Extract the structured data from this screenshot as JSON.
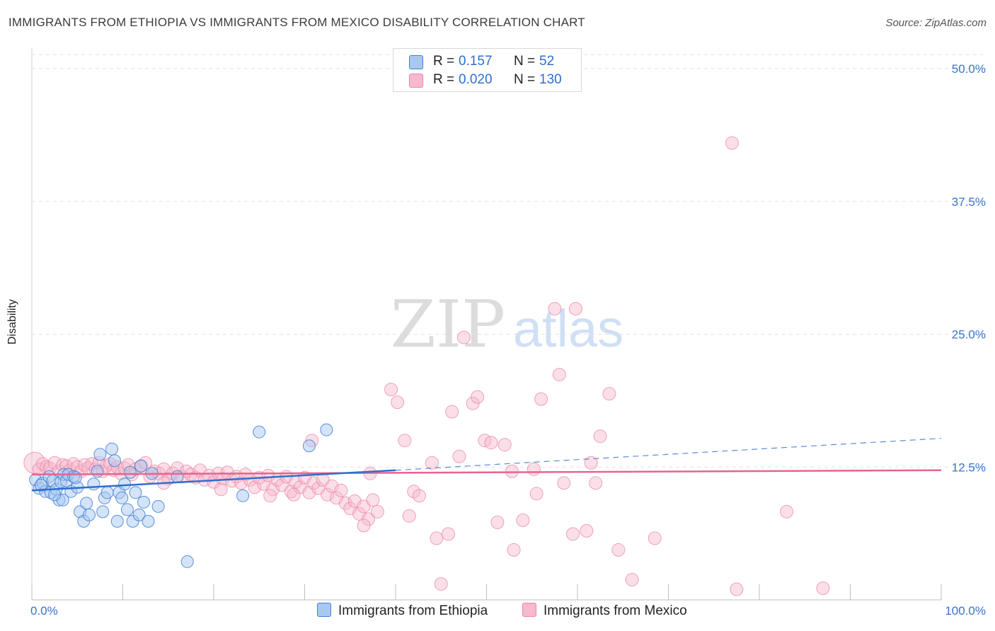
{
  "title": "IMMIGRANTS FROM ETHIOPIA VS IMMIGRANTS FROM MEXICO DISABILITY CORRELATION CHART",
  "source": "Source: ZipAtlas.com",
  "watermark": {
    "zip": "ZIP",
    "atlas": "atlas"
  },
  "colors": {
    "ethiopia_fill": "#a9c8f0",
    "ethiopia_stroke": "#3f7fd6",
    "ethiopia_line": "#2f6fcd",
    "mexico_fill": "#f6b9cd",
    "mexico_stroke": "#e985a6",
    "mexico_line": "#e8648f",
    "axis_text": "#3a72c8",
    "grid": "#e2e2e2"
  },
  "legend": {
    "r_label": "R =",
    "n_label": "N =",
    "ethiopia": {
      "r": "0.157",
      "n": "52"
    },
    "mexico": {
      "r": "0.020",
      "n": "130"
    }
  },
  "bottom_legend": {
    "ethiopia": "Immigrants from Ethiopia",
    "mexico": "Immigrants from Mexico"
  },
  "chart_data": {
    "type": "scatter",
    "title": "IMMIGRANTS FROM ETHIOPIA VS IMMIGRANTS FROM MEXICO DISABILITY CORRELATION CHART",
    "xlabel": "",
    "ylabel": "Disability",
    "xlim": [
      0,
      100
    ],
    "ylim": [
      0,
      50
    ],
    "x_tick_labels": [
      "0.0%",
      "100.0%"
    ],
    "y_ticks": [
      12.5,
      25.0,
      37.5,
      50.0
    ],
    "y_tick_labels": [
      "12.5%",
      "25.0%",
      "37.5%",
      "50.0%"
    ],
    "grid": true,
    "legend_position": "top-center",
    "series": [
      {
        "name": "Immigrants from Ethiopia",
        "r": 0.157,
        "n": 52,
        "trend": {
          "x0": 0,
          "y0": 10.3,
          "x1": 40,
          "y1": 12.2,
          "dashed_to_x": 100,
          "dashed_to_y": 15.2
        },
        "points": [
          [
            0.4,
            11.3
          ],
          [
            0.8,
            10.5
          ],
          [
            1.2,
            11.0
          ],
          [
            1.5,
            10.2
          ],
          [
            1.9,
            11.6
          ],
          [
            2.1,
            10.1
          ],
          [
            2.3,
            11.2
          ],
          [
            2.7,
            10.4
          ],
          [
            3.0,
            9.4
          ],
          [
            3.2,
            11.1
          ],
          [
            3.5,
            11.8
          ],
          [
            3.8,
            11.2
          ],
          [
            4.0,
            11.8
          ],
          [
            4.3,
            10.2
          ],
          [
            4.6,
            11.6
          ],
          [
            5.0,
            10.6
          ],
          [
            3.4,
            9.4
          ],
          [
            1.0,
            10.8
          ],
          [
            2.5,
            9.9
          ],
          [
            5.3,
            8.3
          ],
          [
            5.7,
            7.4
          ],
          [
            6.0,
            9.1
          ],
          [
            6.3,
            8.0
          ],
          [
            6.8,
            10.9
          ],
          [
            7.2,
            12.1
          ],
          [
            7.5,
            13.7
          ],
          [
            7.8,
            8.3
          ],
          [
            8.0,
            9.6
          ],
          [
            8.3,
            10.1
          ],
          [
            8.8,
            14.2
          ],
          [
            9.1,
            13.1
          ],
          [
            9.4,
            7.4
          ],
          [
            9.6,
            10.1
          ],
          [
            9.9,
            9.6
          ],
          [
            10.2,
            10.9
          ],
          [
            10.5,
            8.5
          ],
          [
            10.8,
            12.0
          ],
          [
            11.1,
            7.4
          ],
          [
            11.4,
            10.1
          ],
          [
            11.8,
            8.0
          ],
          [
            12.0,
            12.6
          ],
          [
            12.3,
            9.2
          ],
          [
            12.8,
            7.4
          ],
          [
            13.2,
            11.9
          ],
          [
            13.9,
            8.8
          ],
          [
            16.0,
            11.6
          ],
          [
            17.1,
            3.6
          ],
          [
            23.2,
            9.8
          ],
          [
            25.0,
            15.8
          ],
          [
            30.5,
            14.5
          ],
          [
            32.4,
            16.0
          ],
          [
            4.8,
            11.5
          ]
        ]
      },
      {
        "name": "Immigrants from Mexico",
        "r": 0.02,
        "n": 130,
        "trend": {
          "x0": 0,
          "y0": 11.8,
          "x1": 100,
          "y1": 12.2
        },
        "points": [
          [
            0.3,
            12.9
          ],
          [
            0.8,
            12.3
          ],
          [
            1.2,
            12.8
          ],
          [
            1.6,
            12.5
          ],
          [
            2.0,
            12.4
          ],
          [
            2.5,
            12.9
          ],
          [
            3.0,
            12.1
          ],
          [
            3.4,
            12.7
          ],
          [
            3.8,
            12.6
          ],
          [
            4.2,
            12.2
          ],
          [
            4.6,
            12.8
          ],
          [
            5.0,
            12.5
          ],
          [
            5.4,
            12.1
          ],
          [
            5.8,
            12.7
          ],
          [
            6.2,
            12.4
          ],
          [
            6.6,
            12.8
          ],
          [
            7.0,
            12.3
          ],
          [
            7.4,
            12.9
          ],
          [
            7.8,
            12.1
          ],
          [
            8.2,
            12.6
          ],
          [
            8.6,
            12.8
          ],
          [
            9.0,
            12.2
          ],
          [
            9.4,
            12.5
          ],
          [
            9.8,
            11.9
          ],
          [
            10.2,
            12.4
          ],
          [
            10.6,
            12.7
          ],
          [
            11.0,
            11.8
          ],
          [
            11.4,
            12.3
          ],
          [
            12.0,
            12.6
          ],
          [
            12.5,
            12.9
          ],
          [
            13.0,
            11.6
          ],
          [
            13.5,
            12.1
          ],
          [
            14.0,
            11.9
          ],
          [
            14.5,
            12.3
          ],
          [
            15.0,
            11.4
          ],
          [
            15.5,
            11.9
          ],
          [
            16.0,
            12.4
          ],
          [
            16.5,
            11.6
          ],
          [
            17.0,
            12.1
          ],
          [
            17.5,
            11.8
          ],
          [
            18.0,
            11.5
          ],
          [
            18.5,
            12.2
          ],
          [
            19.0,
            11.3
          ],
          [
            19.5,
            11.7
          ],
          [
            20.0,
            11.1
          ],
          [
            20.5,
            11.9
          ],
          [
            21.0,
            11.4
          ],
          [
            21.5,
            12.0
          ],
          [
            22.0,
            11.2
          ],
          [
            22.5,
            11.6
          ],
          [
            23.0,
            11.0
          ],
          [
            23.5,
            11.8
          ],
          [
            24.0,
            11.3
          ],
          [
            24.5,
            10.6
          ],
          [
            25.0,
            11.5
          ],
          [
            25.5,
            10.9
          ],
          [
            26.0,
            11.7
          ],
          [
            26.5,
            10.4
          ],
          [
            27.0,
            11.3
          ],
          [
            27.5,
            10.8
          ],
          [
            28.0,
            11.6
          ],
          [
            28.5,
            10.2
          ],
          [
            29.0,
            11.1
          ],
          [
            29.5,
            10.6
          ],
          [
            30.0,
            11.5
          ],
          [
            30.5,
            10.1
          ],
          [
            31.0,
            11.0
          ],
          [
            31.5,
            10.5
          ],
          [
            32.0,
            11.3
          ],
          [
            32.5,
            9.9
          ],
          [
            33.0,
            10.7
          ],
          [
            33.5,
            9.6
          ],
          [
            34.0,
            10.3
          ],
          [
            34.5,
            9.1
          ],
          [
            35.0,
            8.6
          ],
          [
            35.5,
            9.3
          ],
          [
            36.0,
            8.1
          ],
          [
            36.5,
            8.8
          ],
          [
            37.0,
            7.6
          ],
          [
            37.5,
            9.4
          ],
          [
            38.0,
            8.3
          ],
          [
            14.5,
            11.0
          ],
          [
            20.8,
            10.4
          ],
          [
            26.2,
            9.8
          ],
          [
            28.8,
            9.9
          ],
          [
            36.5,
            7.0
          ],
          [
            39.5,
            19.8
          ],
          [
            40.2,
            18.6
          ],
          [
            41.5,
            7.9
          ],
          [
            42.0,
            10.2
          ],
          [
            42.6,
            9.8
          ],
          [
            44.5,
            5.8
          ],
          [
            45.0,
            1.5
          ],
          [
            45.8,
            6.2
          ],
          [
            46.2,
            17.7
          ],
          [
            47.5,
            24.7
          ],
          [
            47.0,
            13.5
          ],
          [
            48.5,
            18.5
          ],
          [
            49.0,
            19.1
          ],
          [
            49.8,
            15.0
          ],
          [
            50.5,
            14.8
          ],
          [
            51.2,
            7.3
          ],
          [
            52.0,
            14.6
          ],
          [
            53.0,
            4.7
          ],
          [
            54.0,
            7.5
          ],
          [
            55.5,
            10.0
          ],
          [
            56.0,
            18.9
          ],
          [
            57.5,
            27.4
          ],
          [
            58.0,
            21.2
          ],
          [
            59.5,
            6.2
          ],
          [
            59.8,
            27.4
          ],
          [
            61.0,
            6.5
          ],
          [
            62.0,
            11.0
          ],
          [
            62.5,
            15.4
          ],
          [
            63.5,
            19.4
          ],
          [
            64.5,
            4.7
          ],
          [
            66.0,
            1.9
          ],
          [
            68.5,
            5.8
          ],
          [
            77.0,
            43.0
          ],
          [
            77.5,
            1.0
          ],
          [
            83.0,
            8.3
          ],
          [
            87.0,
            1.1
          ],
          [
            30.8,
            15.0
          ],
          [
            37.2,
            11.9
          ],
          [
            41.0,
            15.0
          ],
          [
            44.0,
            12.9
          ],
          [
            55.2,
            12.3
          ],
          [
            61.5,
            12.9
          ],
          [
            58.5,
            11.0
          ],
          [
            52.8,
            12.1
          ]
        ]
      }
    ]
  }
}
